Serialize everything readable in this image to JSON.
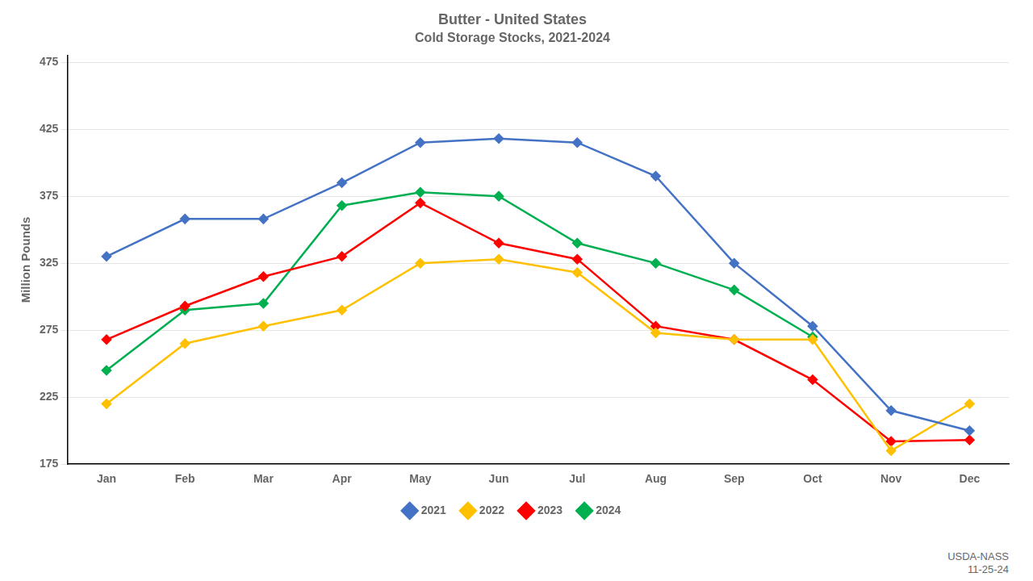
{
  "chart_data": {
    "type": "line",
    "title": "Butter - United States",
    "subtitle": "Cold Storage Stocks, 2021-2024",
    "y_label": "Million Pounds",
    "annotations": [
      "USDA-NASS\n11-25-24"
    ],
    "categories": [
      "Jan",
      "Feb",
      "Mar",
      "Apr",
      "May",
      "Jun",
      "Jul",
      "Aug",
      "Sep",
      "Oct",
      "Nov",
      "Dec"
    ],
    "series": [
      {
        "name": "2021",
        "color": "#4472C4",
        "values": [
          330,
          358,
          358,
          385,
          415,
          418,
          415,
          390,
          325,
          278,
          215,
          200
        ]
      },
      {
        "name": "2022",
        "color": "#FFC000",
        "values": [
          220,
          265,
          278,
          290,
          325,
          328,
          318,
          273,
          268,
          268,
          185,
          220
        ]
      },
      {
        "name": "2023",
        "color": "#FF0000",
        "values": [
          268,
          293,
          315,
          330,
          370,
          340,
          328,
          278,
          268,
          238,
          192,
          193
        ]
      },
      {
        "name": "2024",
        "color": "#00B050",
        "values": [
          245,
          290,
          295,
          368,
          378,
          375,
          340,
          325,
          305,
          270,
          null,
          null
        ]
      }
    ],
    "ylim": [
      175,
      480
    ],
    "yticks": [
      175,
      225,
      275,
      325,
      375,
      425,
      475
    ],
    "grid": true,
    "legend": "bottom",
    "marker": "diamond"
  }
}
